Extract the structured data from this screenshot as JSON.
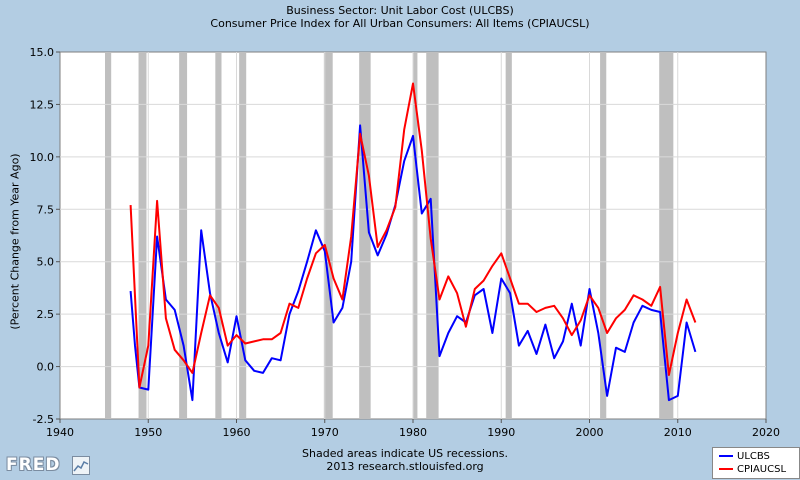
{
  "titles": {
    "line1": "Business Sector: Unit Labor Cost (ULCBS)",
    "line2": "Consumer Price Index for All Urban Consumers: All Items (CPIAUCSL)"
  },
  "footer": {
    "line1": "Shaded areas indicate US recessions.",
    "line2": "2013 research.stlouisfed.org"
  },
  "logo": {
    "text": "FRED",
    "icon": "chart-graph-icon"
  },
  "colors": {
    "ulcbs": "#0000ff",
    "cpi": "#ff0000",
    "recession": "#bfbfbf",
    "grid": "#d9d9d9",
    "background": "#b3cde3"
  },
  "chart_data": {
    "type": "line",
    "title": "Business Sector: Unit Labor Cost (ULCBS) / Consumer Price Index for All Urban Consumers: All Items (CPIAUCSL)",
    "xlabel": "",
    "ylabel": "(Percent Change from Year Ago)",
    "xlim": [
      1940,
      2020
    ],
    "ylim": [
      -2.5,
      15.0
    ],
    "xticks": [
      "1940",
      "1950",
      "1960",
      "1970",
      "1980",
      "1990",
      "2000",
      "2010",
      "2020"
    ],
    "yticks": [
      "-2.5",
      "0.0",
      "2.5",
      "5.0",
      "7.5",
      "10.0",
      "12.5",
      "15.0"
    ],
    "grid": true,
    "legend_position": "bottom-right",
    "recessions": [
      [
        1945.1,
        1945.8
      ],
      [
        1948.9,
        1949.8
      ],
      [
        1953.5,
        1954.4
      ],
      [
        1957.6,
        1958.3
      ],
      [
        1960.3,
        1961.1
      ],
      [
        1969.9,
        1970.9
      ],
      [
        1973.9,
        1975.2
      ],
      [
        1980.0,
        1980.5
      ],
      [
        1981.5,
        1982.9
      ],
      [
        1990.5,
        1991.2
      ],
      [
        2001.2,
        2001.9
      ],
      [
        2007.9,
        2009.5
      ]
    ],
    "series": [
      {
        "name": "ULCBS",
        "color": "#0000ff",
        "x": [
          1948,
          1948.5,
          1949,
          1950,
          1951,
          1952,
          1953,
          1954,
          1955,
          1956,
          1957,
          1958,
          1959,
          1960,
          1961,
          1962,
          1963,
          1964,
          1965,
          1966,
          1967,
          1968,
          1969,
          1970,
          1971,
          1972,
          1973,
          1974,
          1975,
          1976,
          1977,
          1978,
          1979,
          1980,
          1981,
          1982,
          1983,
          1984,
          1985,
          1986,
          1987,
          1988,
          1989,
          1990,
          1991,
          1992,
          1993,
          1994,
          1995,
          1996,
          1997,
          1998,
          1999,
          2000,
          2001,
          2002,
          2003,
          2004,
          2005,
          2006,
          2007,
          2008,
          2009,
          2010,
          2011,
          2012
        ],
        "values": [
          3.6,
          1.0,
          -1.0,
          -1.1,
          6.2,
          3.2,
          2.7,
          1.0,
          -1.6,
          6.5,
          3.5,
          1.6,
          0.2,
          2.4,
          0.3,
          -0.2,
          -0.3,
          0.4,
          0.3,
          2.5,
          3.6,
          5.0,
          6.5,
          5.5,
          2.1,
          2.8,
          5.0,
          11.5,
          6.4,
          5.3,
          6.3,
          7.7,
          9.8,
          11.0,
          7.3,
          8.0,
          0.5,
          1.6,
          2.4,
          2.1,
          3.4,
          3.7,
          1.6,
          4.2,
          3.5,
          1.0,
          1.7,
          0.6,
          2.0,
          0.4,
          1.2,
          3.0,
          1.0,
          3.7,
          1.6,
          -1.4,
          0.9,
          0.7,
          2.1,
          2.9,
          2.7,
          2.6,
          -1.6,
          -1.4,
          2.1,
          0.7
        ]
      },
      {
        "name": "CPIAUCSL",
        "color": "#ff0000",
        "x": [
          1948,
          1949,
          1950,
          1951,
          1952,
          1953,
          1954,
          1955,
          1956,
          1957,
          1958,
          1959,
          1960,
          1961,
          1962,
          1963,
          1964,
          1965,
          1966,
          1967,
          1968,
          1969,
          1970,
          1971,
          1972,
          1973,
          1974,
          1975,
          1976,
          1977,
          1978,
          1979,
          1980,
          1981,
          1982,
          1983,
          1984,
          1985,
          1986,
          1987,
          1988,
          1989,
          1990,
          1991,
          1992,
          1993,
          1994,
          1995,
          1996,
          1997,
          1998,
          1999,
          2000,
          2001,
          2002,
          2003,
          2004,
          2005,
          2006,
          2007,
          2008,
          2009,
          2010,
          2011,
          2012
        ],
        "values": [
          7.7,
          -1.0,
          1.0,
          7.9,
          2.3,
          0.8,
          0.3,
          -0.3,
          1.6,
          3.4,
          2.8,
          1.0,
          1.5,
          1.1,
          1.2,
          1.3,
          1.3,
          1.6,
          3.0,
          2.8,
          4.2,
          5.4,
          5.8,
          4.2,
          3.2,
          6.2,
          11.1,
          9.1,
          5.7,
          6.5,
          7.6,
          11.3,
          13.5,
          10.3,
          6.1,
          3.2,
          4.3,
          3.5,
          1.9,
          3.7,
          4.1,
          4.8,
          5.4,
          4.2,
          3.0,
          3.0,
          2.6,
          2.8,
          2.9,
          2.3,
          1.5,
          2.2,
          3.4,
          2.8,
          1.6,
          2.3,
          2.7,
          3.4,
          3.2,
          2.9,
          3.8,
          -0.4,
          1.6,
          3.2,
          2.1
        ]
      }
    ]
  }
}
